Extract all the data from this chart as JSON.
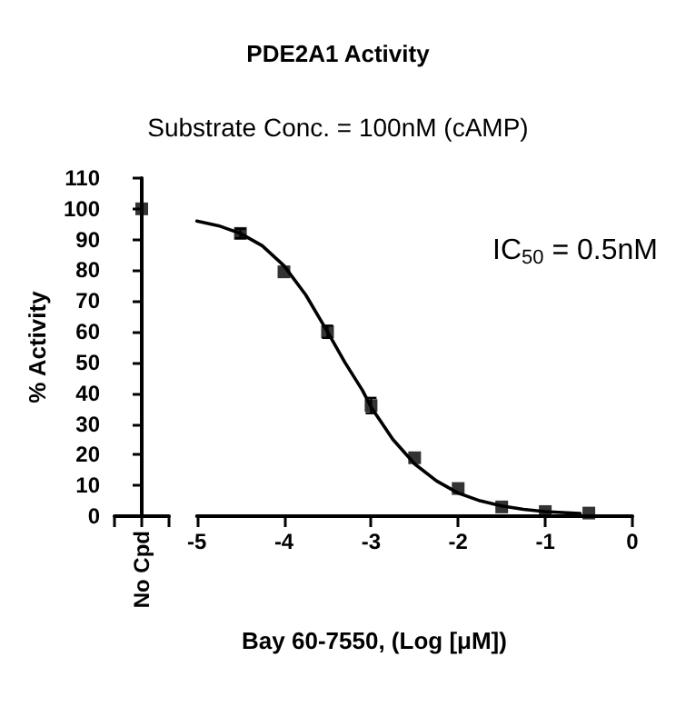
{
  "chart_data": [
    {
      "type": "scatter",
      "ylabel": "% Activity",
      "categories": [
        "No Cpd"
      ],
      "marker": "square",
      "ylim": [
        0,
        110
      ],
      "yticks": [
        0,
        10,
        20,
        30,
        40,
        50,
        60,
        70,
        80,
        90,
        100,
        110
      ],
      "series": [
        {
          "color": "#000000",
          "values": [
            100
          ]
        }
      ]
    },
    {
      "type": "scatter",
      "title": "PDE2A1 Activity",
      "subtitle": "Substrate Conc. = 100nM (cAMP)",
      "xlabel": "Bay 60-7550, (Log [μM])",
      "annotations": [
        "IC$_{50}$ = 0.5nM"
      ],
      "tick_labels": "x",
      "xlim": [
        -5,
        0
      ],
      "xticks": [
        -5,
        -4,
        -3,
        -2,
        -1,
        0
      ],
      "ylim": [
        0,
        110
      ],
      "series": [
        {
          "color": "#000000",
          "marker": "square",
          "x": [
            -4.5,
            -4,
            -3.5,
            -3,
            -2.5,
            -2,
            -1.5,
            -1,
            -0.5
          ],
          "values": [
            92,
            79.5,
            60,
            36,
            19,
            9,
            3,
            1.5,
            1
          ],
          "errors": [
            1.5,
            null,
            2,
            2.5,
            null,
            null,
            null,
            null,
            null
          ]
        },
        {
          "type": "line",
          "color": "#000000",
          "line_style": "solid",
          "marker": "none",
          "x": [
            -5,
            -4.75,
            -4.5,
            -4.25,
            -4,
            -3.75,
            -3.5,
            -3.3,
            -3.1,
            -3,
            -2.75,
            -2.5,
            -2.25,
            -2,
            -1.75,
            -1.5,
            -1.25,
            -1,
            -0.75,
            -0.6
          ],
          "values": [
            96,
            94.5,
            92,
            88,
            81.5,
            72,
            60,
            50,
            41,
            35.5,
            25,
            17,
            11.5,
            7.5,
            5,
            3.3,
            2.2,
            1.5,
            1.1,
            0.9
          ]
        }
      ]
    }
  ]
}
